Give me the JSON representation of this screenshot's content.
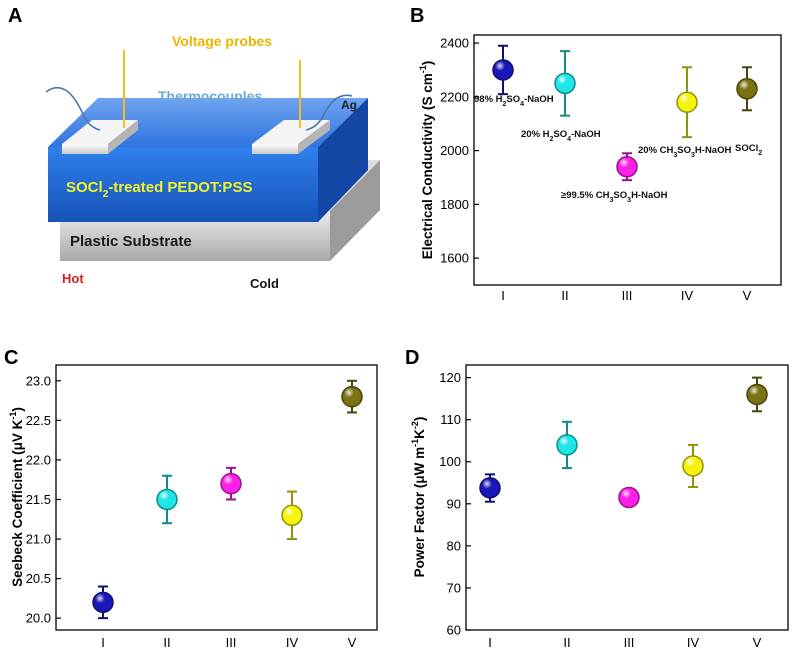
{
  "colors": {
    "I": "#1a17b8",
    "II": "#1fe6e6",
    "III": "#ff20e8",
    "IV": "#f4f410",
    "V": "#7b7313",
    "axis": "#000000",
    "pedot_layer": "#1f6fe0",
    "substrate": "#c8c8c8",
    "voltage_label": "#f0b400",
    "thermocouple_label": "#6fa8d8",
    "hot_label": "#d31d1d",
    "film_label": "#f2f22a"
  },
  "schematic": {
    "panel_label": "A",
    "voltage_probes": "Voltage probes",
    "thermocouples": "Thermocouples",
    "ag": "Ag",
    "film_pre": "SOCl",
    "film_sub": "2",
    "film_post": "-treated PEDOT:PSS",
    "substrate": "Plastic Substrate",
    "hot": "Hot",
    "cold": "Cold"
  },
  "chart_data": [
    {
      "id": "B",
      "panel_label": "B",
      "type": "scatter",
      "ylabel_pre": "Electrical Conductivity  (S cm",
      "ylabel_sup": "-1",
      "ylabel_post": ")",
      "categories": [
        "I",
        "II",
        "III",
        "IV",
        "V"
      ],
      "values": [
        2300,
        2250,
        1940,
        2180,
        2230
      ],
      "err_low": [
        2210,
        2130,
        1890,
        2050,
        2150
      ],
      "err_high": [
        2390,
        2370,
        1990,
        2310,
        2310
      ],
      "ylim": [
        1500,
        2430
      ],
      "yticks": [
        1600,
        1800,
        2000,
        2200,
        2400
      ],
      "ytick_labels": [
        "1600",
        "1800",
        "2000",
        "2200",
        "2400"
      ],
      "annotations": [
        {
          "pre": "98% H",
          "s1": "2",
          "mid1": "SO",
          "s2": "4",
          "post": "-NaOH"
        },
        {
          "pre": "20% H",
          "s1": "2",
          "mid1": "SO",
          "s2": "4",
          "post": "-NaOH"
        },
        {
          "pre": "≥99.5% CH",
          "s1": "3",
          "mid1": "SO",
          "s2": "3",
          "post": "H-NaOH"
        },
        {
          "pre": "20% CH",
          "s1": "3",
          "mid1": "SO",
          "s2": "3",
          "post": "H-NaOH"
        },
        {
          "pre": "SOCl",
          "s1": "2",
          "mid1": "",
          "s2": "",
          "post": ""
        }
      ]
    },
    {
      "id": "C",
      "panel_label": "C",
      "type": "scatter",
      "ylabel_pre": "Seebeck Coefficient  (μV K",
      "ylabel_sup": "-1",
      "ylabel_post": ")",
      "categories": [
        "I",
        "II",
        "III",
        "IV",
        "V"
      ],
      "values": [
        20.2,
        21.5,
        21.7,
        21.3,
        22.8
      ],
      "err_low": [
        20.0,
        21.2,
        21.5,
        21.0,
        22.6
      ],
      "err_high": [
        20.4,
        21.8,
        21.9,
        21.6,
        23.0
      ],
      "ylim": [
        19.85,
        23.2
      ],
      "yticks": [
        20.0,
        20.5,
        21.0,
        21.5,
        22.0,
        22.5,
        23.0
      ],
      "ytick_labels": [
        "20.0",
        "20.5",
        "21.0",
        "21.5",
        "22.0",
        "22.5",
        "23.0"
      ]
    },
    {
      "id": "D",
      "panel_label": "D",
      "type": "scatter",
      "ylabel_pre": "Power Factor  (μW m",
      "ylabel_sup": "-1",
      "ylabel_mid": "K",
      "ylabel_sup2": "-2",
      "ylabel_post": ")",
      "categories": [
        "I",
        "II",
        "III",
        "IV",
        "V"
      ],
      "values": [
        93.8,
        104,
        91.5,
        99,
        116
      ],
      "err_low": [
        90.5,
        98.5,
        89.5,
        94,
        112
      ],
      "err_high": [
        97,
        109.5,
        93.5,
        104,
        120
      ],
      "ylim": [
        60,
        123
      ],
      "yticks": [
        60,
        70,
        80,
        90,
        100,
        110,
        120
      ],
      "ytick_labels": [
        "60",
        "70",
        "80",
        "90",
        "100",
        "110",
        "120"
      ]
    }
  ]
}
